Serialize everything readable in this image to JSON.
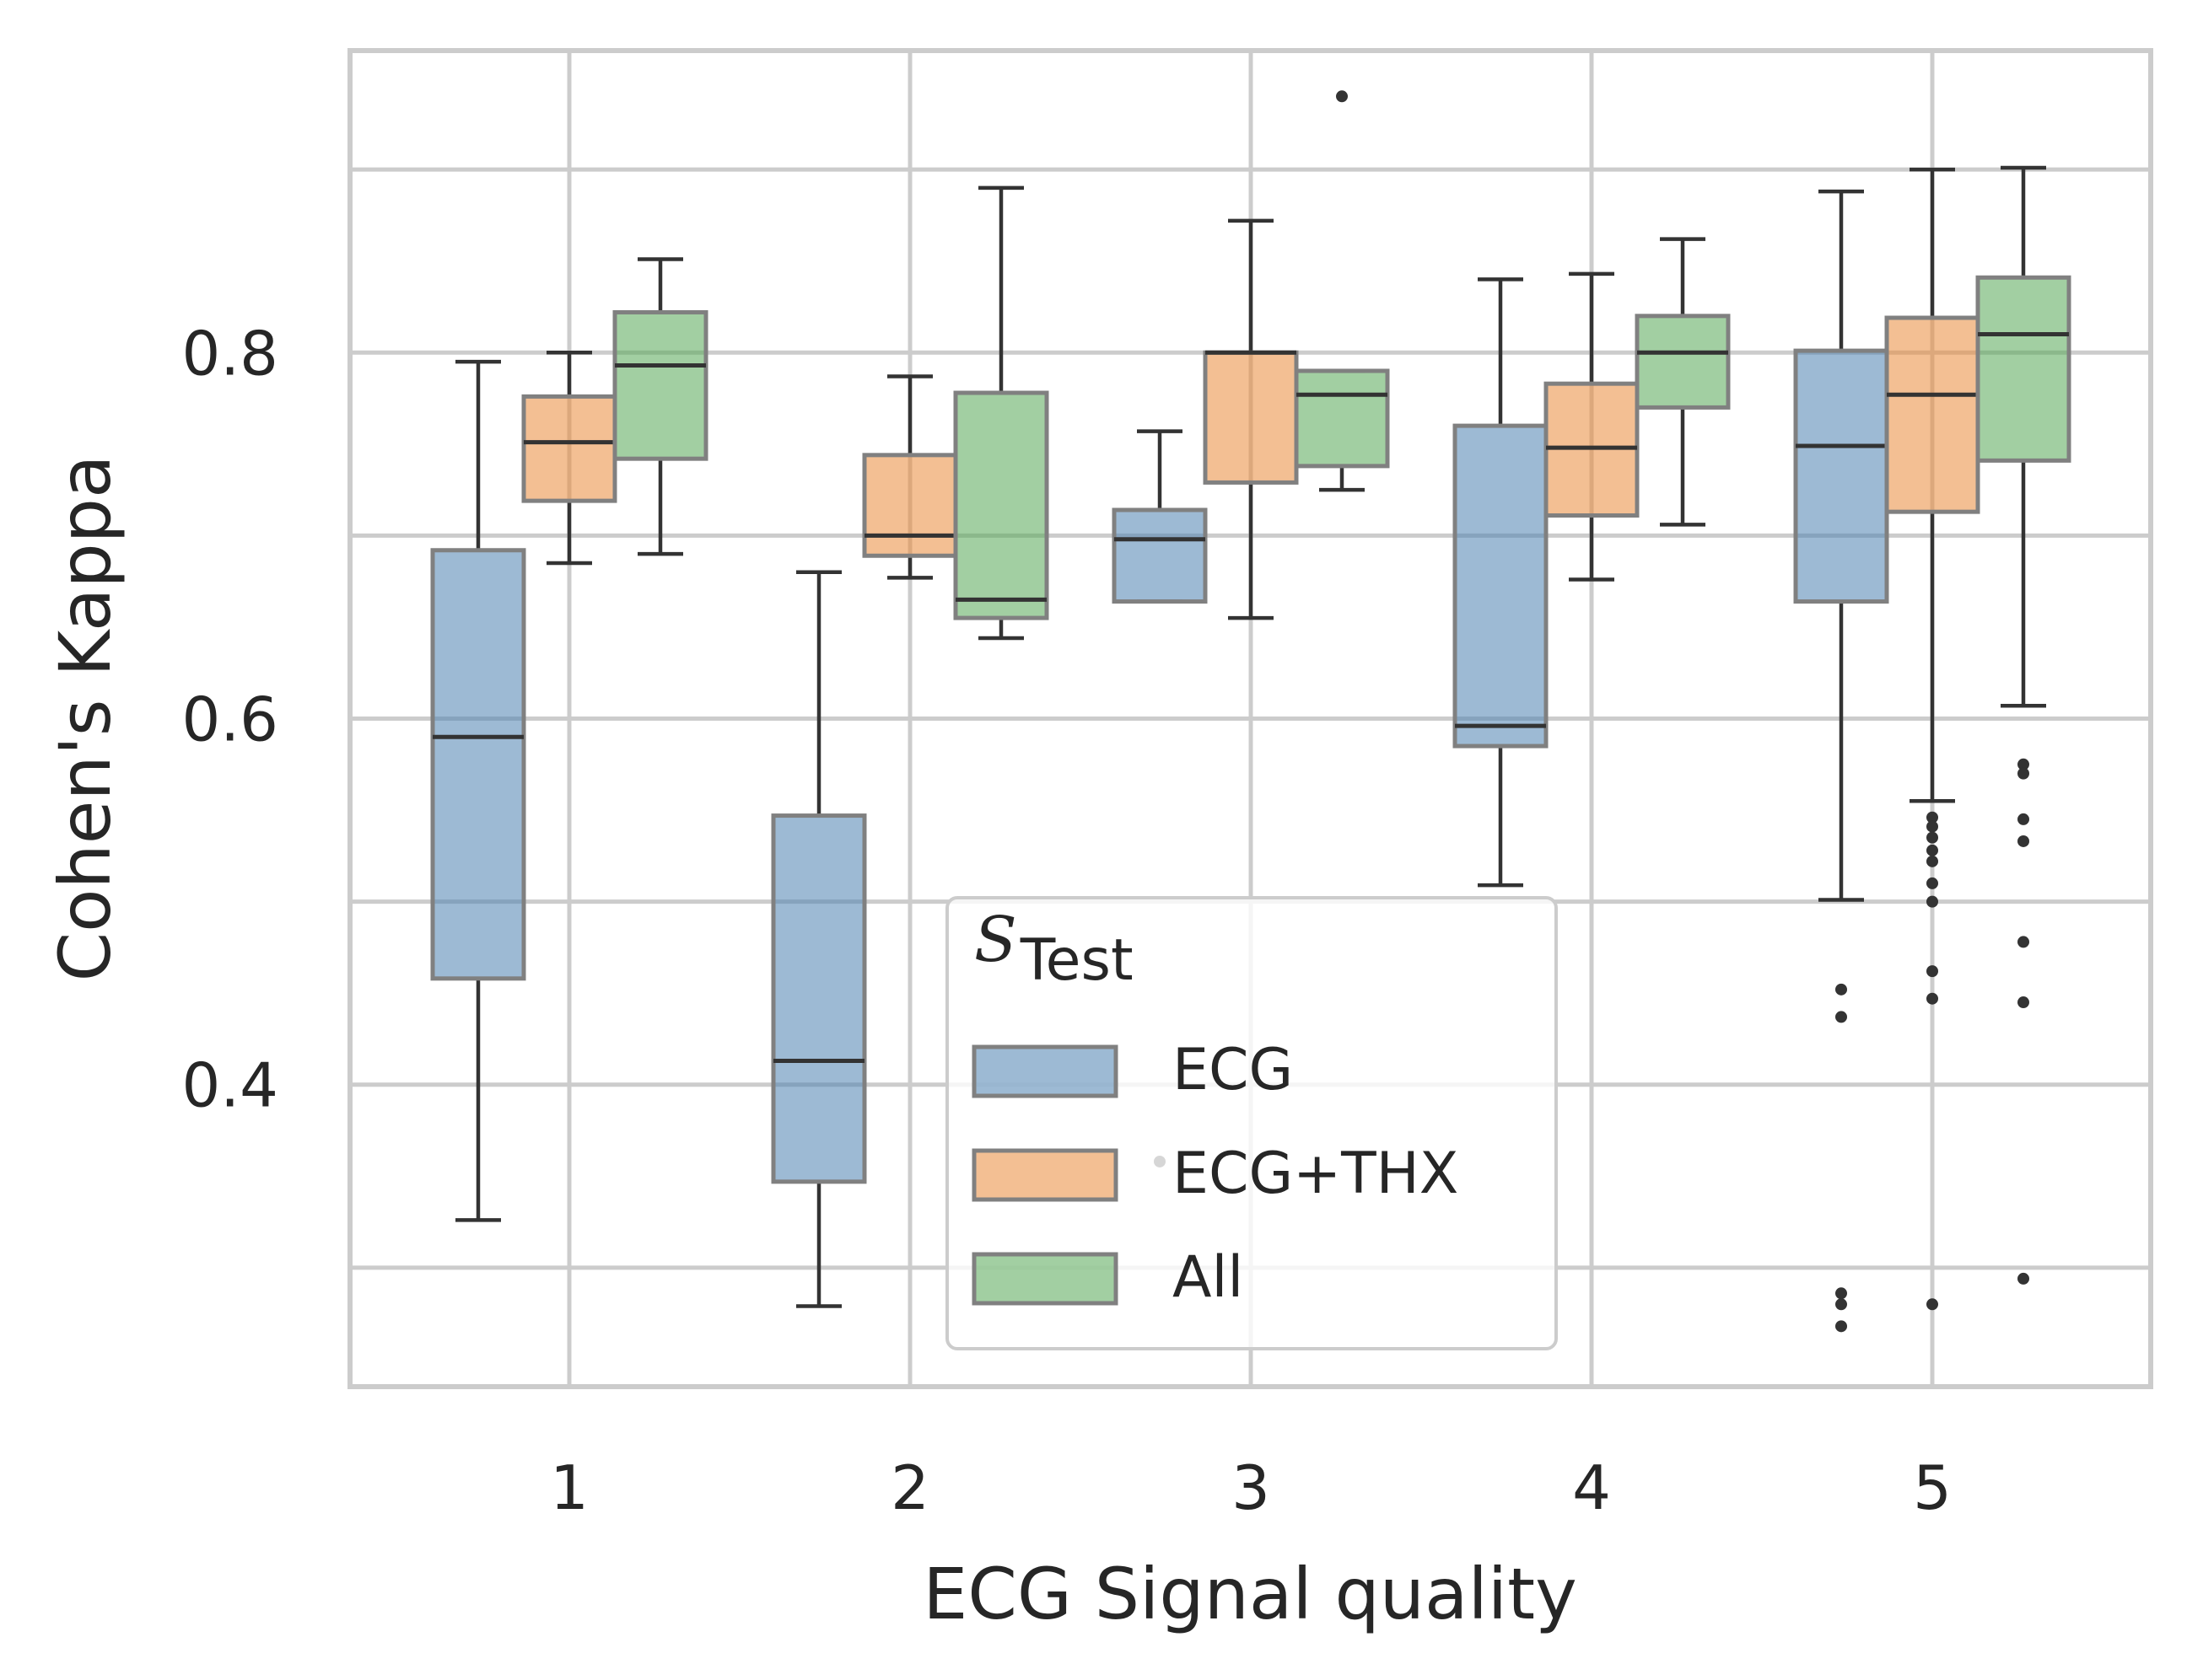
{
  "chart_data": {
    "type": "box",
    "title": "",
    "xlabel": "ECG Signal quality",
    "ylabel": "Cohen's Kappa",
    "categories": [
      "1",
      "2",
      "3",
      "4",
      "5"
    ],
    "y_ticks": [
      "0.4",
      "0.6",
      "0.8"
    ],
    "ylim": [
      0.235,
      0.965
    ],
    "grid": true,
    "legend": {
      "title_symbol": "S",
      "title_subscript": "Test",
      "placement": "lower-center"
    },
    "series": [
      {
        "name": "ECG",
        "color": "#4c82b0",
        "boxes": [
          {
            "category": "1",
            "whislo": 0.326,
            "q1": 0.458,
            "median": 0.59,
            "q3": 0.692,
            "whishi": 0.795,
            "fliers": []
          },
          {
            "category": "2",
            "whislo": 0.279,
            "q1": 0.347,
            "median": 0.413,
            "q3": 0.547,
            "whishi": 0.68,
            "fliers": []
          },
          {
            "category": "3",
            "whislo": 0.664,
            "q1": 0.664,
            "median": 0.698,
            "q3": 0.714,
            "whishi": 0.757,
            "fliers": [
              0.358
            ]
          },
          {
            "category": "4",
            "whislo": 0.509,
            "q1": 0.585,
            "median": 0.596,
            "q3": 0.76,
            "whishi": 0.84,
            "fliers": []
          },
          {
            "category": "5",
            "whislo": 0.501,
            "q1": 0.664,
            "median": 0.749,
            "q3": 0.801,
            "whishi": 0.888,
            "fliers": [
              0.452,
              0.437,
              0.286,
              0.28,
              0.268
            ]
          }
        ]
      },
      {
        "name": "ECG+THX",
        "color": "#e98a3a",
        "boxes": [
          {
            "category": "1",
            "whislo": 0.685,
            "q1": 0.719,
            "median": 0.751,
            "q3": 0.776,
            "whishi": 0.8,
            "fliers": []
          },
          {
            "category": "2",
            "whislo": 0.677,
            "q1": 0.689,
            "median": 0.7,
            "q3": 0.744,
            "whishi": 0.787,
            "fliers": []
          },
          {
            "category": "3",
            "whislo": 0.655,
            "q1": 0.729,
            "median": 0.8,
            "q3": 0.8,
            "whishi": 0.872,
            "fliers": []
          },
          {
            "category": "4",
            "whislo": 0.676,
            "q1": 0.711,
            "median": 0.748,
            "q3": 0.783,
            "whishi": 0.843,
            "fliers": []
          },
          {
            "category": "5",
            "whislo": 0.555,
            "q1": 0.713,
            "median": 0.777,
            "q3": 0.819,
            "whishi": 0.9,
            "fliers": [
              0.546,
              0.541,
              0.535,
              0.528,
              0.522,
              0.51,
              0.5,
              0.462,
              0.447,
              0.28
            ]
          }
        ]
      },
      {
        "name": "All",
        "color": "#55a755",
        "boxes": [
          {
            "category": "1",
            "whislo": 0.69,
            "q1": 0.742,
            "median": 0.793,
            "q3": 0.822,
            "whishi": 0.851,
            "fliers": []
          },
          {
            "category": "2",
            "whislo": 0.644,
            "q1": 0.655,
            "median": 0.665,
            "q3": 0.778,
            "whishi": 0.89,
            "fliers": []
          },
          {
            "category": "3",
            "whislo": 0.725,
            "q1": 0.738,
            "median": 0.777,
            "q3": 0.79,
            "whishi": 0.79,
            "fliers": [
              0.94
            ]
          },
          {
            "category": "4",
            "whislo": 0.706,
            "q1": 0.77,
            "median": 0.8,
            "q3": 0.82,
            "whishi": 0.862,
            "fliers": []
          },
          {
            "category": "5",
            "whislo": 0.607,
            "q1": 0.741,
            "median": 0.81,
            "q3": 0.841,
            "whishi": 0.901,
            "fliers": [
              0.575,
              0.57,
              0.545,
              0.533,
              0.478,
              0.445,
              0.294
            ]
          }
        ]
      }
    ]
  }
}
